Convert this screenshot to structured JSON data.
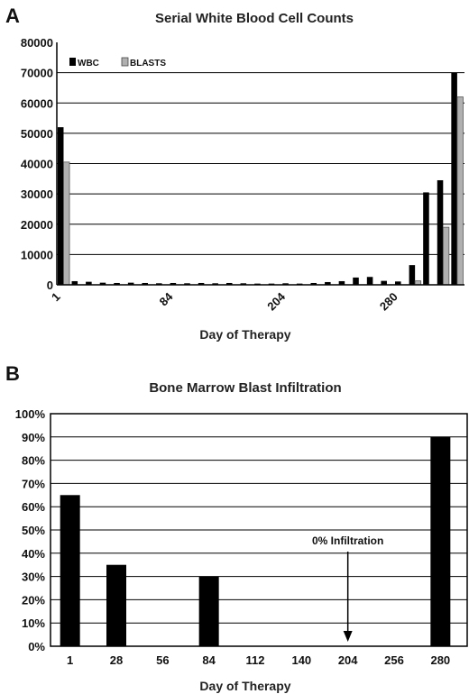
{
  "chart_data": [
    {
      "panel": "A",
      "type": "bar",
      "title": "Serial White Blood Cell Counts",
      "xlabel": "Day of Therapy",
      "ylabel": "",
      "ylim": [
        0,
        80000
      ],
      "yticks": [
        "0",
        "10000",
        "20000",
        "30000",
        "40000",
        "50000",
        "60000",
        "70000",
        "80000"
      ],
      "xtick_labels": [
        {
          "index": 0,
          "label": "1"
        },
        {
          "index": 8,
          "label": "84"
        },
        {
          "index": 16,
          "label": "204"
        },
        {
          "index": 24,
          "label": "280"
        }
      ],
      "grid": true,
      "legend_position": "top-left",
      "series": [
        {
          "name": "WBC",
          "color": "#000000",
          "values": [
            52000,
            1200,
            1000,
            700,
            600,
            700,
            600,
            500,
            600,
            500,
            600,
            500,
            600,
            500,
            400,
            400,
            500,
            400,
            600,
            900,
            1200,
            2400,
            2600,
            1300,
            1100,
            6500,
            30500,
            34500,
            70000
          ]
        },
        {
          "name": "BLASTS",
          "color": "#b0b0b0",
          "values": [
            40500,
            0,
            0,
            0,
            0,
            0,
            0,
            0,
            0,
            0,
            0,
            0,
            0,
            0,
            0,
            0,
            0,
            0,
            0,
            0,
            0,
            0,
            0,
            0,
            0,
            1300,
            0,
            19000,
            62000
          ]
        }
      ]
    },
    {
      "panel": "B",
      "type": "bar",
      "title": "Bone Marrow Blast Infiltration",
      "xlabel": "Day of Therapy",
      "ylabel": "",
      "ylim": [
        0,
        100
      ],
      "yticks": [
        "0%",
        "10%",
        "20%",
        "30%",
        "40%",
        "50%",
        "60%",
        "70%",
        "80%",
        "90%",
        "100%"
      ],
      "categories": [
        "1",
        "28",
        "56",
        "84",
        "112",
        "140",
        "204",
        "256",
        "280"
      ],
      "values": [
        65,
        35,
        0,
        30,
        0,
        0,
        0,
        0,
        90
      ],
      "color": "#000000",
      "grid": true,
      "annotation": {
        "text": "0% Infiltration",
        "category": "204"
      }
    }
  ]
}
